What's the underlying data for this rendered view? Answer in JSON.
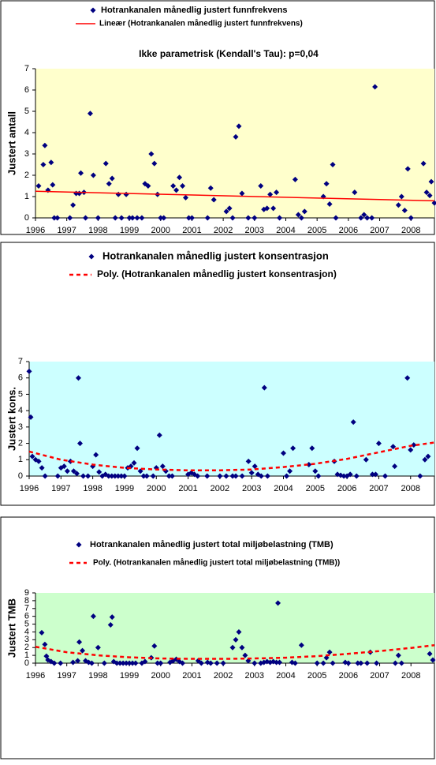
{
  "chart_data": [
    {
      "type": "scatter",
      "title": "Ikke parametrisk (Kendall's Tau): p=0,04",
      "ylabel": "Justert antall",
      "plot_color": "#ffffcc",
      "xlim": [
        1996,
        2008.75
      ],
      "xticks": [
        1996,
        1997,
        1998,
        1999,
        2000,
        2001,
        2002,
        2003,
        2004,
        2005,
        2006,
        2007,
        2008
      ],
      "ylim": [
        0,
        7
      ],
      "yticks": [
        0,
        1,
        2,
        3,
        4,
        5,
        6,
        7
      ],
      "series": [
        {
          "name": "Hotrankanalen månedlig justert funnfrekvens",
          "color": "#000080",
          "marker": "diamond",
          "x": [
            1996.1,
            1996.25,
            1996.3,
            1996.4,
            1996.5,
            1996.55,
            1996.6,
            1996.7,
            1997.1,
            1997.2,
            1997.3,
            1997.4,
            1997.45,
            1997.55,
            1997.6,
            1997.75,
            1997.85,
            1998.0,
            1998.25,
            1998.35,
            1998.45,
            1998.55,
            1998.65,
            1998.75,
            1998.9,
            1999.0,
            1999.1,
            1999.25,
            1999.4,
            1999.5,
            1999.6,
            1999.7,
            1999.8,
            1999.9,
            2000.0,
            2000.1,
            2000.4,
            2000.5,
            2000.6,
            2000.7,
            2000.8,
            2000.9,
            2001.0,
            2001.5,
            2001.6,
            2001.7,
            2002.1,
            2002.2,
            2002.3,
            2002.4,
            2002.5,
            2002.6,
            2002.8,
            2003.0,
            2003.2,
            2003.3,
            2003.4,
            2003.5,
            2003.6,
            2003.7,
            2003.8,
            2004.3,
            2004.4,
            2004.5,
            2004.6,
            2005.2,
            2005.3,
            2005.4,
            2005.5,
            2005.6,
            2006.2,
            2006.4,
            2006.5,
            2006.6,
            2006.75,
            2006.85,
            2007.6,
            2007.7,
            2007.8,
            2007.9,
            2008.0,
            2008.4,
            2008.5,
            2008.6,
            2008.65,
            2008.75
          ],
          "values": [
            1.5,
            2.5,
            3.4,
            1.3,
            2.6,
            1.55,
            0,
            0,
            0,
            0.6,
            1.15,
            1.15,
            2.1,
            1.2,
            0,
            4.9,
            2.0,
            0,
            2.55,
            1.6,
            1.85,
            0,
            1.1,
            0,
            1.1,
            0,
            0,
            0,
            0,
            1.6,
            1.5,
            3.0,
            2.55,
            1.1,
            0,
            0,
            1.5,
            1.3,
            1.9,
            1.5,
            0.95,
            0,
            0,
            0,
            1.4,
            0.85,
            0.3,
            0.45,
            0,
            3.8,
            4.3,
            1.15,
            0,
            0,
            1.5,
            0.4,
            0.45,
            1.1,
            0.45,
            1.2,
            0,
            1.8,
            0.15,
            0,
            0.3,
            1.0,
            1.6,
            0.65,
            2.5,
            0,
            1.2,
            0,
            0.15,
            0,
            0,
            6.15,
            0.6,
            1.0,
            0.35,
            2.3,
            0,
            2.55,
            1.2,
            1.05,
            1.7,
            0.7
          ]
        },
        {
          "name": "Lineær (Hotrankanalen månedlig justert funnfrekvens)",
          "color": "#ff0000",
          "style": "solid",
          "x": [
            1996,
            2008.75
          ],
          "values": [
            1.25,
            0.8
          ]
        }
      ]
    },
    {
      "type": "scatter",
      "ylabel": "Justert kons.",
      "plot_color": "#ccffff",
      "xlim": [
        1996,
        2008.75
      ],
      "xticks": [
        1996,
        1997,
        1998,
        1999,
        2000,
        2001,
        2002,
        2003,
        2004,
        2005,
        2006,
        2007,
        2008
      ],
      "ylim": [
        0,
        7
      ],
      "yticks": [
        0,
        1,
        2,
        3,
        4,
        5,
        6,
        7
      ],
      "series": [
        {
          "name": "Hotrankanalen månedlig justert konsentrasjon",
          "color": "#000080",
          "marker": "diamond",
          "x": [
            1996.0,
            1996.05,
            1996.1,
            1996.2,
            1996.3,
            1996.4,
            1996.5,
            1996.9,
            1997.0,
            1997.1,
            1997.2,
            1997.3,
            1997.4,
            1997.5,
            1997.55,
            1997.6,
            1997.7,
            1997.85,
            1998.0,
            1998.1,
            1998.2,
            1998.3,
            1998.4,
            1998.5,
            1998.6,
            1998.7,
            1998.8,
            1998.9,
            1999.0,
            1999.1,
            1999.2,
            1999.3,
            1999.4,
            1999.5,
            1999.6,
            1999.7,
            1999.9,
            2000.0,
            2000.1,
            2000.2,
            2000.3,
            2000.4,
            2000.5,
            2001.0,
            2001.1,
            2001.2,
            2001.3,
            2001.6,
            2002.0,
            2002.2,
            2002.4,
            2002.5,
            2002.7,
            2002.9,
            2003.0,
            2003.1,
            2003.2,
            2003.3,
            2003.4,
            2003.5,
            2004.0,
            2004.1,
            2004.2,
            2004.3,
            2004.8,
            2004.9,
            2005.0,
            2005.1,
            2005.6,
            2005.7,
            2005.8,
            2005.9,
            2006.0,
            2006.1,
            2006.2,
            2006.3,
            2006.6,
            2006.8,
            2006.9,
            2007.0,
            2007.2,
            2007.45,
            2007.5,
            2007.9,
            2008.0,
            2008.1,
            2008.3,
            2008.45,
            2008.55
          ],
          "values": [
            6.4,
            3.6,
            1.2,
            1.0,
            0.9,
            0.5,
            0,
            0,
            0.5,
            0.6,
            0.3,
            0.9,
            0.3,
            0.15,
            6.0,
            2.0,
            0,
            0,
            0.6,
            1.3,
            0.25,
            0,
            0.1,
            0,
            0,
            0,
            0,
            0,
            0,
            0.5,
            0.6,
            0.8,
            1.7,
            0.3,
            0,
            0,
            0,
            0.5,
            2.5,
            0.6,
            0.3,
            0,
            0,
            0.1,
            0.2,
            0.1,
            0,
            0,
            0,
            0,
            0,
            0,
            0,
            0.9,
            0.2,
            0.6,
            0.1,
            0,
            5.4,
            0,
            1.4,
            0,
            0.3,
            1.7,
            0.7,
            1.7,
            0.3,
            0,
            0.9,
            0.1,
            0.05,
            0,
            0,
            0.1,
            3.3,
            0,
            1.0,
            0.1,
            0.1,
            2.0,
            0,
            1.8,
            0.6,
            6.0,
            1.6,
            1.9,
            0,
            1.0,
            1.2
          ]
        },
        {
          "name": "Poly. (Hotrankanalen månedlig justert konsentrasjon)",
          "color": "#ff0000",
          "style": "dashed",
          "x": [
            1996,
            1997,
            1998,
            1999,
            2000,
            2001,
            2002,
            2003,
            2004,
            2005,
            2006,
            2007,
            2008,
            2008.75
          ],
          "values": [
            1.5,
            1.0,
            0.7,
            0.5,
            0.4,
            0.35,
            0.35,
            0.4,
            0.55,
            0.75,
            1.05,
            1.45,
            1.85,
            2.05
          ]
        }
      ]
    },
    {
      "type": "scatter",
      "ylabel": "Justert TMB",
      "plot_color": "#ccffcc",
      "xlim": [
        1996,
        2008.75
      ],
      "xticks": [
        1996,
        1997,
        1998,
        1999,
        2000,
        2001,
        2002,
        2003,
        2004,
        2005,
        2006,
        2007,
        2008
      ],
      "ylim": [
        0,
        9
      ],
      "yticks": [
        0,
        1,
        2,
        3,
        4,
        5,
        6,
        7,
        8,
        9
      ],
      "series": [
        {
          "name": "Hotrankanalen månedlig justert total miljøbelastning (TMB)",
          "color": "#000080",
          "marker": "diamond",
          "x": [
            1996.2,
            1996.3,
            1996.35,
            1996.4,
            1996.5,
            1996.6,
            1996.8,
            1997.2,
            1997.35,
            1997.4,
            1997.5,
            1997.6,
            1997.7,
            1997.8,
            1997.85,
            1998.0,
            1998.2,
            1998.4,
            1998.45,
            1998.5,
            1998.6,
            1998.7,
            1998.8,
            1998.9,
            1999.0,
            1999.1,
            1999.2,
            1999.4,
            1999.5,
            1999.7,
            1999.8,
            1999.9,
            2000.0,
            2000.3,
            2000.4,
            2000.5,
            2000.6,
            2000.7,
            2001.2,
            2001.3,
            2001.5,
            2001.6,
            2001.8,
            2002.0,
            2002.3,
            2002.4,
            2002.5,
            2002.6,
            2002.7,
            2002.8,
            2003.0,
            2003.2,
            2003.3,
            2003.4,
            2003.5,
            2003.6,
            2003.7,
            2003.75,
            2003.8,
            2004.2,
            2004.3,
            2004.5,
            2005.0,
            2005.2,
            2005.3,
            2005.4,
            2005.5,
            2005.9,
            2006.0,
            2006.3,
            2006.4,
            2006.6,
            2006.7,
            2006.9,
            2007.5,
            2007.6,
            2007.7,
            2008.6,
            2008.7
          ],
          "values": [
            3.9,
            2.4,
            0.9,
            0.4,
            0.2,
            0,
            0,
            0.1,
            0.3,
            2.7,
            1.6,
            0.3,
            0.1,
            0,
            6.0,
            2.0,
            0,
            4.9,
            5.9,
            0.2,
            0,
            0,
            0,
            0,
            0,
            0,
            0,
            0,
            0.2,
            0.7,
            2.2,
            0,
            0,
            0.1,
            0.3,
            0.5,
            0.2,
            0,
            0.3,
            0,
            0.1,
            0,
            0,
            0,
            2.0,
            3.0,
            4.0,
            2.0,
            1.0,
            0.3,
            0,
            0,
            0.1,
            0.2,
            0.1,
            0.2,
            0.1,
            7.7,
            0.1,
            0.1,
            0,
            2.3,
            0,
            0,
            0.7,
            1.4,
            0,
            0.1,
            0,
            0,
            0,
            0,
            1.4,
            0,
            0,
            1.0,
            0,
            1.2,
            0.4
          ]
        },
        {
          "name": "Poly. (Hotrankanalen månedlig justert total miljøbelastning (TMB))",
          "color": "#ff0000",
          "style": "dashed",
          "x": [
            1996,
            1997,
            1998,
            1999,
            2000,
            2001,
            2002,
            2003,
            2004,
            2005,
            2006,
            2007,
            2008,
            2008.75
          ],
          "values": [
            2.1,
            1.4,
            1.0,
            0.75,
            0.6,
            0.55,
            0.55,
            0.6,
            0.7,
            0.9,
            1.2,
            1.55,
            1.95,
            2.3
          ]
        }
      ]
    }
  ]
}
